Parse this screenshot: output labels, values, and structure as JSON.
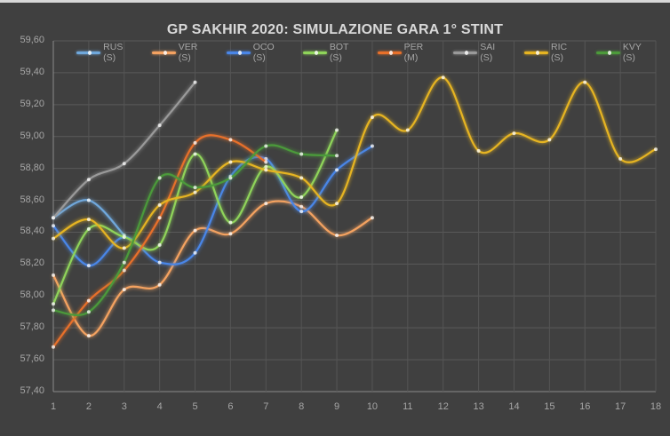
{
  "chart_data": {
    "type": "line",
    "title": "GP SAKHIR 2020: SIMULAZIONE GARA 1° STINT",
    "xlabel": "",
    "ylabel": "",
    "x": [
      1,
      2,
      3,
      4,
      5,
      6,
      7,
      8,
      9,
      10,
      11,
      12,
      13,
      14,
      15,
      16,
      17,
      18
    ],
    "x_tick_labels": [
      "1",
      "2",
      "3",
      "4",
      "5",
      "6",
      "7",
      "8",
      "9",
      "10",
      "11",
      "12",
      "13",
      "14",
      "15",
      "16",
      "17",
      "18"
    ],
    "ylim": [
      57.4,
      59.6
    ],
    "y_tick_labels": [
      "59,60",
      "59,40",
      "59,20",
      "59,00",
      "58,80",
      "58,60",
      "58,40",
      "58,20",
      "58,00",
      "57,80",
      "57,60",
      "57,40"
    ],
    "grid": true,
    "legend_position": "top",
    "smooth": true,
    "series": [
      {
        "name": "RUS (S)",
        "color": "#6fa8dc",
        "values": [
          58.49,
          58.6,
          58.38
        ]
      },
      {
        "name": "VER (S)",
        "color": "#f4a261",
        "values": [
          58.13,
          57.75,
          58.04,
          58.07,
          58.41,
          58.39,
          58.58,
          58.56,
          58.38,
          58.49
        ]
      },
      {
        "name": "OCO (S)",
        "color": "#4a86e8",
        "values": [
          58.44,
          58.19,
          58.37,
          58.21,
          58.27,
          58.75,
          58.86,
          58.53,
          58.79,
          58.94
        ]
      },
      {
        "name": "BOT (S)",
        "color": "#8fd45a",
        "values": [
          57.95,
          58.42,
          58.37,
          58.32,
          58.89,
          58.46,
          58.81,
          58.62,
          59.04
        ]
      },
      {
        "name": "PER (M)",
        "color": "#e8702a",
        "values": [
          57.68,
          57.97,
          58.16,
          58.49,
          58.96,
          58.98,
          58.84
        ]
      },
      {
        "name": "SAI (S)",
        "color": "#9a9a9a",
        "values": [
          58.49,
          58.73,
          58.83,
          59.07,
          59.34
        ]
      },
      {
        "name": "RIC (S)",
        "color": "#e6b422",
        "values": [
          58.36,
          58.48,
          58.3,
          58.57,
          58.65,
          58.84,
          58.79,
          58.74,
          58.58,
          59.12,
          59.04,
          59.37,
          58.91,
          59.02,
          58.98,
          59.34,
          58.86,
          58.92
        ]
      },
      {
        "name": "KVY (S)",
        "color": "#4c9a3a",
        "values": [
          57.91,
          57.9,
          58.21,
          58.74,
          58.68,
          58.74,
          58.94,
          58.89,
          58.88
        ]
      }
    ]
  }
}
